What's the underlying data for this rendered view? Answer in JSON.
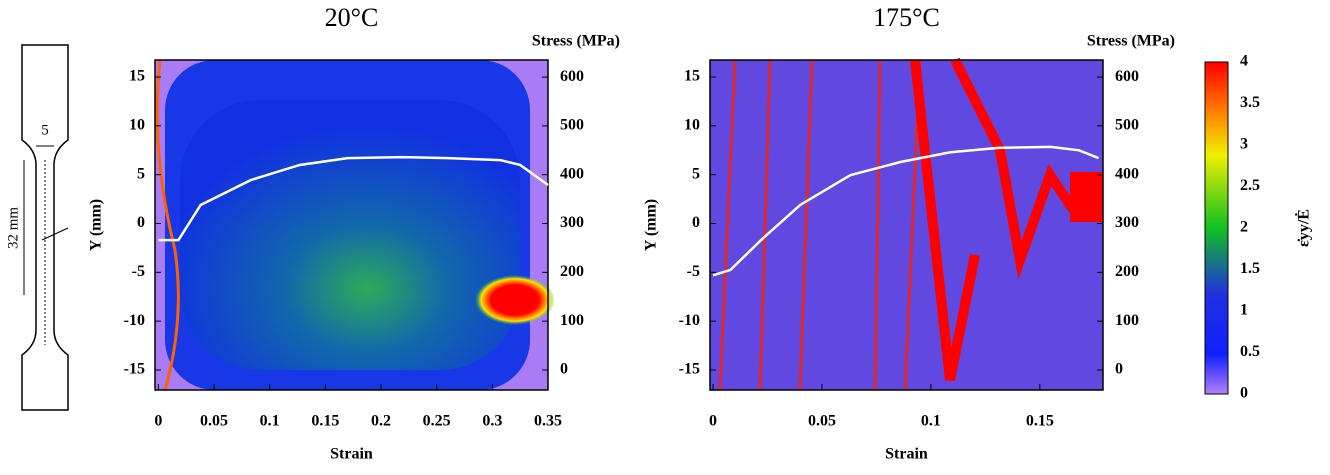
{
  "chart_data": [
    {
      "type": "line",
      "title": "20°C",
      "x_label": "Strain",
      "y_label": "Y (mm)",
      "y2_label": "Stress (MPa)",
      "xlim": [
        -0.003,
        0.35
      ],
      "xticks": [
        0,
        0.05,
        0.1,
        0.15,
        0.2,
        0.25,
        0.3,
        0.35
      ],
      "ylim": [
        -17.05,
        16.74
      ],
      "yticks": [
        -15,
        -10,
        -5,
        0,
        5,
        10,
        15
      ],
      "y2lim": [
        -41,
        635
      ],
      "y2ticks": [
        0,
        100,
        200,
        300,
        400,
        500,
        600
      ],
      "series": [
        {
          "axis": "y2",
          "color": "#ffffff",
          "x": [
            0,
            0.018,
            0.038,
            0.083,
            0.127,
            0.17,
            0.22,
            0.26,
            0.307,
            0.325,
            0.35
          ],
          "values": [
            266,
            266,
            338,
            389,
            420,
            434,
            436,
            434,
            430,
            420,
            379
          ]
        }
      ]
    },
    {
      "type": "line",
      "title": "175°C",
      "x_label": "Strain",
      "y_label": "Y (mm)",
      "y2_label": "Stress (MPa)",
      "xlim": [
        -0.0014,
        0.179
      ],
      "xticks": [
        0,
        0.05,
        0.1,
        0.15
      ],
      "ylim": [
        -17.05,
        16.74
      ],
      "yticks": [
        -15,
        -10,
        -5,
        0,
        5,
        10,
        15
      ],
      "y2lim": [
        -41,
        635
      ],
      "y2ticks": [
        0,
        100,
        200,
        300,
        400,
        500,
        600
      ],
      "series": [
        {
          "axis": "y2",
          "color": "#ffffff",
          "x": [
            0,
            0.008,
            0.022,
            0.04,
            0.063,
            0.086,
            0.109,
            0.131,
            0.155,
            0.168,
            0.177
          ],
          "values": [
            194,
            205,
            266,
            338,
            399,
            426,
            446,
            455,
            457,
            450,
            434
          ]
        }
      ]
    }
  ],
  "colorbar": {
    "label": "ε̇yy/Ė",
    "lim": [
      0,
      4
    ],
    "ticks": [
      0,
      0.5,
      1,
      1.5,
      2,
      2.5,
      3,
      3.5,
      4
    ]
  },
  "specimen": {
    "width_label": "5",
    "length_label": "32 mm"
  }
}
